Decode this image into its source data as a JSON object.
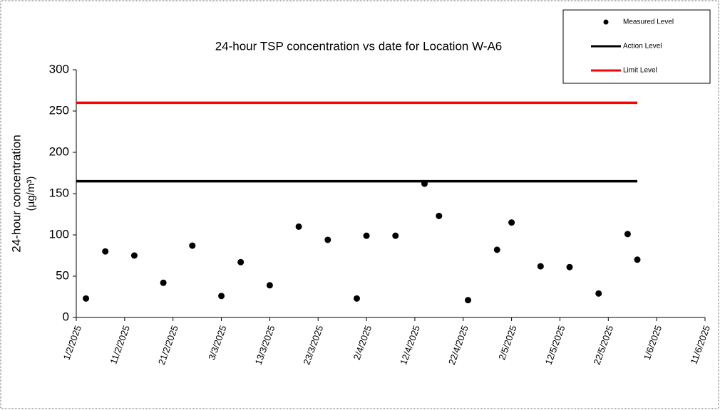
{
  "chart_data": {
    "type": "scatter",
    "title": "24-hour TSP concentration vs date for Location W-A6",
    "y_label": [
      "24-hour concentration",
      "(µg/m³)"
    ],
    "xlim": [
      "1/2/2025",
      "11/6/2025"
    ],
    "xticks": [
      "1/2/2025",
      "11/2/2025",
      "21/2/2025",
      "3/3/2025",
      "13/3/2025",
      "23/3/2025",
      "2/4/2025",
      "12/4/2025",
      "22/4/2025",
      "2/5/2025",
      "12/5/2025",
      "22/5/2025",
      "1/6/2025",
      "11/6/2025"
    ],
    "ylim": [
      0,
      300
    ],
    "yticks": [
      0,
      50,
      100,
      150,
      200,
      250,
      300
    ],
    "grid": false,
    "legend": "top-right",
    "series": [
      {
        "name": "Measured Level",
        "type": "scatter",
        "color": "#000000",
        "x": [
          "3/2/2025",
          "7/2/2025",
          "13/2/2025",
          "19/2/2025",
          "25/2/2025",
          "3/3/2025",
          "7/3/2025",
          "13/3/2025",
          "19/3/2025",
          "25/3/2025",
          "31/3/2025",
          "2/4/2025",
          "8/4/2025",
          "14/4/2025",
          "17/4/2025",
          "23/4/2025",
          "29/4/2025",
          "2/5/2025",
          "8/5/2025",
          "14/5/2025",
          "20/5/2025",
          "26/5/2025",
          "28/5/2025"
        ],
        "values": [
          23,
          80,
          75,
          42,
          87,
          26,
          67,
          39,
          110,
          94,
          23,
          99,
          99,
          162,
          123,
          21,
          82,
          115,
          62,
          61,
          29,
          101,
          70
        ]
      },
      {
        "name": "Action Level",
        "type": "line",
        "color": "#000000",
        "x": [
          "1/2/2025",
          "28/5/2025"
        ],
        "values": [
          165,
          165
        ]
      },
      {
        "name": "Limit Level",
        "type": "line",
        "color": "#ff0000",
        "x": [
          "1/2/2025",
          "28/5/2025"
        ],
        "values": [
          260,
          260
        ]
      }
    ]
  }
}
